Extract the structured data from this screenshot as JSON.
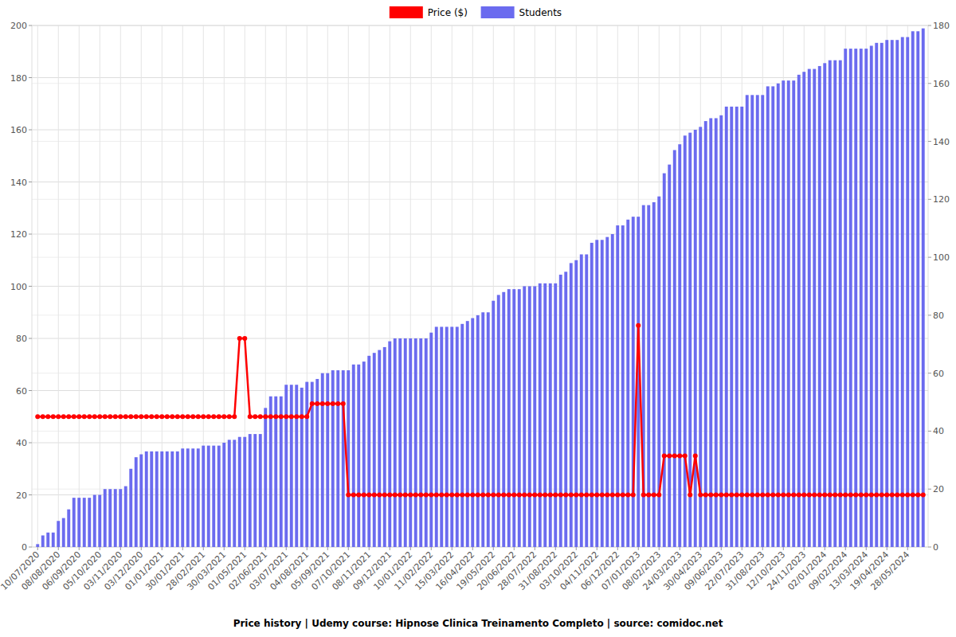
{
  "chart_data": {
    "type": "bar",
    "title": "Price history | Udemy course: Hipnose Clinica Treinamento Completo | source: comidoc.net",
    "categories": [
      "10/07/2020",
      null,
      null,
      null,
      "08/08/2020",
      null,
      null,
      null,
      "06/09/2020",
      null,
      null,
      null,
      "05/10/2020",
      null,
      null,
      null,
      "03/11/2020",
      null,
      null,
      null,
      "03/12/2020",
      null,
      null,
      null,
      "01/01/2021",
      null,
      null,
      null,
      "30/01/2021",
      null,
      null,
      null,
      "28/02/2021",
      null,
      null,
      null,
      "30/03/2021",
      null,
      null,
      null,
      "01/05/2021",
      null,
      null,
      null,
      "02/06/2021",
      null,
      null,
      null,
      "03/07/2021",
      null,
      null,
      null,
      "04/08/2021",
      null,
      null,
      null,
      "05/09/2021",
      null,
      null,
      null,
      "07/10/2021",
      null,
      null,
      null,
      "08/11/2021",
      null,
      null,
      null,
      "09/12/2021",
      null,
      null,
      null,
      "10/01/2022",
      null,
      null,
      null,
      "11/02/2022",
      null,
      null,
      null,
      "15/03/2022",
      null,
      null,
      null,
      "16/04/2022",
      null,
      null,
      null,
      "19/05/2022",
      null,
      null,
      null,
      "20/06/2022",
      null,
      null,
      null,
      "28/07/2022",
      null,
      null,
      null,
      "31/08/2022",
      null,
      null,
      null,
      "03/10/2022",
      null,
      null,
      null,
      "04/11/2022",
      null,
      null,
      null,
      "06/12/2022",
      null,
      null,
      null,
      "07/01/2023",
      null,
      null,
      null,
      "08/02/2023",
      null,
      null,
      null,
      "24/03/2023",
      null,
      null,
      null,
      "30/04/2023",
      null,
      null,
      null,
      "09/06/2023",
      null,
      null,
      null,
      "22/07/2023",
      null,
      null,
      null,
      "31/08/2023",
      null,
      null,
      null,
      "12/10/2023",
      null,
      null,
      null,
      "24/11/2023",
      null,
      null,
      null,
      "02/01/2024",
      null,
      null,
      null,
      "09/02/2024",
      null,
      null,
      null,
      "13/03/2024",
      null,
      null,
      null,
      "19/04/2024",
      null,
      null,
      null,
      "28/05/2024",
      null,
      null,
      null
    ],
    "series": [
      {
        "name": "Price ($)",
        "type": "line",
        "color": "#ff0000",
        "marker": "circle",
        "values": [
          50,
          50,
          50,
          50,
          50,
          50,
          50,
          50,
          50,
          50,
          50,
          50,
          50,
          50,
          50,
          50,
          50,
          50,
          50,
          50,
          50,
          50,
          50,
          50,
          50,
          50,
          50,
          50,
          50,
          50,
          50,
          50,
          50,
          50,
          50,
          50,
          50,
          50,
          50,
          80,
          80,
          50,
          50,
          50,
          50,
          50,
          50,
          50,
          50,
          50,
          50,
          50,
          50,
          55,
          55,
          55,
          55,
          55,
          55,
          55,
          20,
          20,
          20,
          20,
          20,
          20,
          20,
          20,
          20,
          20,
          20,
          20,
          20,
          20,
          20,
          20,
          20,
          20,
          20,
          20,
          20,
          20,
          20,
          20,
          20,
          20,
          20,
          20,
          20,
          20,
          20,
          20,
          20,
          20,
          20,
          20,
          20,
          20,
          20,
          20,
          20,
          20,
          20,
          20,
          20,
          20,
          20,
          20,
          20,
          20,
          20,
          20,
          20,
          20,
          20,
          20,
          85,
          20,
          20,
          20,
          20,
          35,
          35,
          35,
          35,
          35,
          20,
          35,
          20,
          20,
          20,
          20,
          20,
          20,
          20,
          20,
          20,
          20,
          20,
          20,
          20,
          20,
          20,
          20,
          20,
          20,
          20,
          20,
          20,
          20,
          20,
          20,
          20,
          20,
          20,
          20,
          20,
          20,
          20,
          20,
          20,
          20,
          20,
          20,
          20,
          20,
          20,
          20,
          20,
          20,
          20,
          20
        ]
      },
      {
        "name": "Students",
        "type": "bar",
        "axis": "y2",
        "color": "#6b6bef",
        "values": [
          1,
          4,
          5,
          5,
          9,
          10,
          13,
          17,
          17,
          17,
          17,
          18,
          18,
          20,
          20,
          20,
          20,
          21,
          27,
          31,
          32,
          33,
          33,
          33,
          33,
          33,
          33,
          33,
          34,
          34,
          34,
          34,
          35,
          35,
          35,
          35,
          36,
          37,
          37,
          38,
          38,
          39,
          39,
          39,
          48,
          52,
          52,
          52,
          56,
          56,
          56,
          55,
          57,
          57,
          58,
          60,
          60,
          61,
          61,
          61,
          61,
          63,
          63,
          64,
          66,
          67,
          68,
          69,
          71,
          72,
          72,
          72,
          72,
          72,
          72,
          72,
          74,
          76,
          76,
          76,
          76,
          76,
          77,
          78,
          79,
          80,
          81,
          81,
          85,
          87,
          88,
          89,
          89,
          89,
          90,
          90,
          90,
          91,
          91,
          91,
          91,
          94,
          95,
          98,
          99,
          101,
          101,
          105,
          106,
          106,
          107,
          108,
          111,
          111,
          113,
          114,
          114,
          118,
          118,
          119,
          121,
          129,
          132,
          137,
          139,
          142,
          143,
          144,
          145,
          147,
          148,
          148,
          149,
          152,
          152,
          152,
          152,
          156,
          156,
          156,
          156,
          159,
          159,
          160,
          161,
          161,
          161,
          163,
          164,
          165,
          165,
          166,
          167,
          168,
          168,
          168,
          172,
          172,
          172,
          172,
          172,
          173,
          174,
          174,
          175,
          175,
          175,
          176,
          176,
          178,
          178,
          179
        ]
      }
    ],
    "ylim": [
      0,
      200
    ],
    "yticks": [
      0,
      20,
      40,
      60,
      80,
      100,
      120,
      140,
      160,
      180,
      200
    ],
    "y2lim": [
      0,
      180
    ],
    "y2ticks": [
      0,
      20,
      40,
      60,
      80,
      100,
      120,
      140,
      160,
      180
    ],
    "grid": true,
    "legend": "top"
  }
}
